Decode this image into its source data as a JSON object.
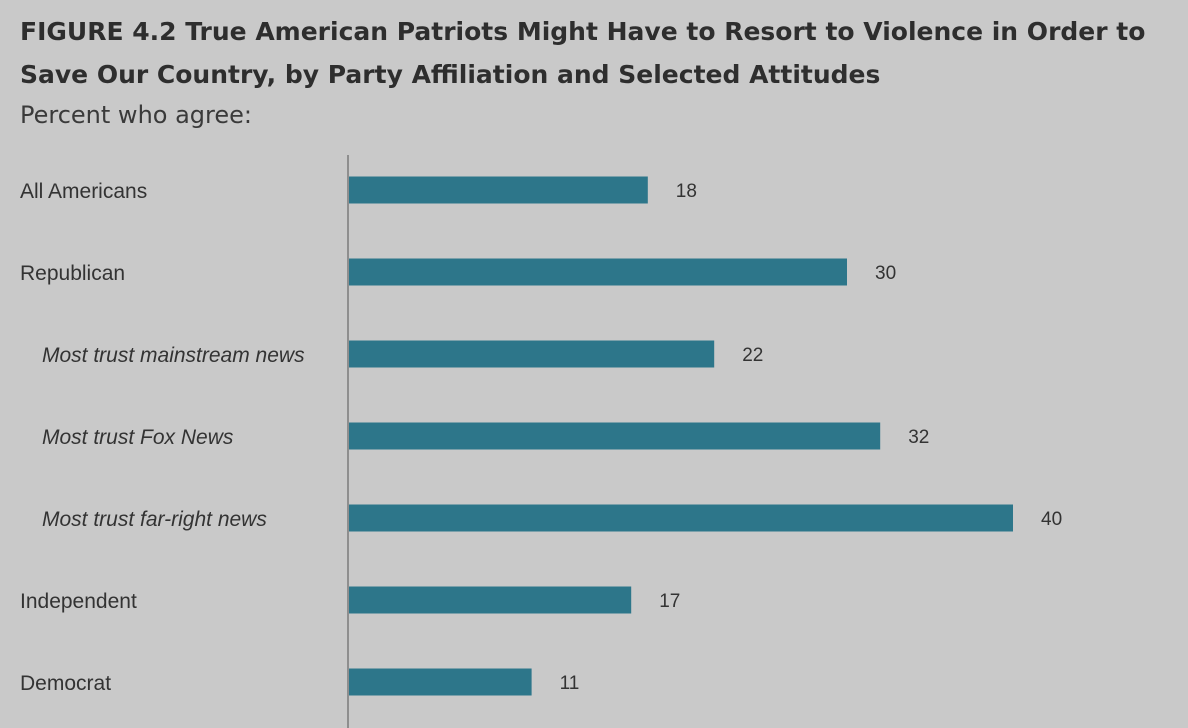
{
  "figure": {
    "title": "FIGURE 4.2  True American Patriots Might Have to Resort to Violence in Order to Save Our Country,  by Party Affiliation and Selected Attitudes",
    "subtitle": "Percent who agree:"
  },
  "colors": {
    "background": "#c9c9c9",
    "bar": "#2d768a",
    "axis": "#8e8e8e",
    "text": "#333333"
  },
  "chart_data": {
    "type": "bar",
    "orientation": "horizontal",
    "title": "FIGURE 4.2  True American Patriots Might Have to Resort to Violence in Order to Save Our Country,  by Party Affiliation and Selected Attitudes",
    "subtitle": "Percent who agree:",
    "categories": [
      "All Americans",
      "Republican",
      "Most trust mainstream news",
      "Most trust Fox News",
      "Most trust far-right news",
      "Independent",
      "Democrat"
    ],
    "subcategory_flags": [
      false,
      false,
      true,
      true,
      true,
      false,
      false
    ],
    "values": [
      18,
      30,
      22,
      32,
      40,
      17,
      11
    ],
    "data_labels": [
      "18",
      "30",
      "22",
      "32",
      "40",
      "17",
      "11"
    ],
    "xlabel": "",
    "ylabel": "",
    "xlim": [
      0,
      40
    ],
    "grid": false,
    "legend": "none"
  }
}
